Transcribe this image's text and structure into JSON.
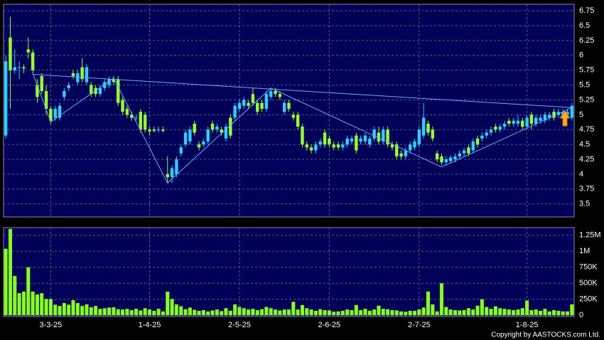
{
  "chart_data": [
    {
      "type": "candlestick",
      "open": [
        4.65,
        6.3,
        5.75,
        5.8,
        5.8,
        6.1,
        6.05,
        5.5,
        5.65,
        5.4,
        5.1,
        4.95,
        4.95,
        5.3,
        5.45,
        5.7,
        5.55,
        5.8,
        5.55,
        5.5,
        5.45,
        5.35,
        5.45,
        5.5,
        5.6,
        5.6,
        5.25,
        5.1,
        5.0,
        4.95,
        5.05,
        5.0,
        4.75,
        4.75,
        4.75,
        4.75,
        4.0,
        3.95,
        4.0,
        4.35,
        4.5,
        4.55,
        4.85,
        4.5,
        4.5,
        4.55,
        4.85,
        4.75,
        4.75,
        4.6,
        4.95,
        4.95,
        5.1,
        5.15,
        5.2,
        5.35,
        5.2,
        5.2,
        5.1,
        5.3,
        5.4,
        5.35,
        5.05,
        5.2,
        5.0,
        5.0,
        4.8,
        4.5,
        4.45,
        4.4,
        4.5,
        4.7,
        4.6,
        4.5,
        4.5,
        4.45,
        4.5,
        4.55,
        4.65,
        4.55,
        4.55,
        4.5,
        4.6,
        4.7,
        4.55,
        4.75,
        4.5,
        4.5,
        4.35,
        4.3,
        4.4,
        4.45,
        4.5,
        4.65,
        4.85,
        4.75,
        4.35,
        4.3,
        4.2,
        4.22,
        4.25,
        4.3,
        4.35,
        4.45,
        4.4,
        4.6,
        4.6,
        4.65,
        4.7,
        4.8,
        4.75,
        4.8,
        4.9,
        4.85,
        4.85,
        4.9,
        4.8,
        5.0,
        4.85,
        4.9,
        4.9,
        4.95,
        5.05,
        5.0,
        5.0,
        5.0,
        4.95
      ],
      "high": [
        6.0,
        6.65,
        6.1,
        5.9,
        5.85,
        6.3,
        6.1,
        5.6,
        5.7,
        5.5,
        5.15,
        5.15,
        5.2,
        5.45,
        5.55,
        5.75,
        5.75,
        5.95,
        5.85,
        5.55,
        5.5,
        5.5,
        5.6,
        5.65,
        5.65,
        5.65,
        5.3,
        5.15,
        5.05,
        5.0,
        5.1,
        5.05,
        4.8,
        4.8,
        4.8,
        4.8,
        4.3,
        4.15,
        4.3,
        4.5,
        4.75,
        4.8,
        4.9,
        4.55,
        4.6,
        4.8,
        4.9,
        4.85,
        4.8,
        4.85,
        5.0,
        5.2,
        5.25,
        5.3,
        5.25,
        5.45,
        5.25,
        5.25,
        5.4,
        5.45,
        5.45,
        5.4,
        5.25,
        5.25,
        5.05,
        5.05,
        4.85,
        4.55,
        4.5,
        4.55,
        4.6,
        4.75,
        4.65,
        4.55,
        4.55,
        4.55,
        4.65,
        4.65,
        4.7,
        4.65,
        4.7,
        4.65,
        4.8,
        4.8,
        4.8,
        4.8,
        4.55,
        4.55,
        4.4,
        4.45,
        4.55,
        4.6,
        4.8,
        5.2,
        4.9,
        4.8,
        4.4,
        4.35,
        4.3,
        4.32,
        4.35,
        4.4,
        4.45,
        4.5,
        4.6,
        4.65,
        4.7,
        4.75,
        4.8,
        4.85,
        4.85,
        4.9,
        4.95,
        4.95,
        5.0,
        4.95,
        5.0,
        5.05,
        5.0,
        5.0,
        5.05,
        5.05,
        5.1,
        5.1,
        5.1,
        5.1,
        5.2
      ],
      "low": [
        4.6,
        5.1,
        5.7,
        5.6,
        5.7,
        5.95,
        5.7,
        5.2,
        5.35,
        5.0,
        4.85,
        4.9,
        4.9,
        5.25,
        5.4,
        5.6,
        5.5,
        5.55,
        5.5,
        5.3,
        5.3,
        5.3,
        5.4,
        5.45,
        5.5,
        5.15,
        5.0,
        4.95,
        4.9,
        4.9,
        4.7,
        4.7,
        4.65,
        4.7,
        4.7,
        4.7,
        3.85,
        3.85,
        3.95,
        4.3,
        4.45,
        4.5,
        4.65,
        4.4,
        4.45,
        4.5,
        4.7,
        4.7,
        4.65,
        4.55,
        4.6,
        4.9,
        5.05,
        5.1,
        5.1,
        5.15,
        5.0,
        5.05,
        5.05,
        5.25,
        5.3,
        5.25,
        5.0,
        5.05,
        4.9,
        4.75,
        4.45,
        4.4,
        4.35,
        4.35,
        4.45,
        4.45,
        4.45,
        4.4,
        4.4,
        4.4,
        4.45,
        4.5,
        4.35,
        4.5,
        4.5,
        4.45,
        4.55,
        4.5,
        4.5,
        4.45,
        4.4,
        4.25,
        4.25,
        4.25,
        4.35,
        4.4,
        4.45,
        4.6,
        4.65,
        4.55,
        4.2,
        4.15,
        4.15,
        4.18,
        4.2,
        4.25,
        4.3,
        4.3,
        4.35,
        4.45,
        4.55,
        4.6,
        4.65,
        4.7,
        4.7,
        4.75,
        4.8,
        4.8,
        4.8,
        4.75,
        4.75,
        4.75,
        4.8,
        4.85,
        4.85,
        4.9,
        4.9,
        4.95,
        4.95,
        4.95,
        4.9
      ],
      "close": [
        5.9,
        5.75,
        5.8,
        5.8,
        5.78,
        6.05,
        5.75,
        5.3,
        5.4,
        5.1,
        4.9,
        5.1,
        5.15,
        5.4,
        5.5,
        5.65,
        5.7,
        5.6,
        5.8,
        5.35,
        5.35,
        5.45,
        5.55,
        5.6,
        5.55,
        5.2,
        5.05,
        5.0,
        4.95,
        4.95,
        4.75,
        4.75,
        4.72,
        4.73,
        4.75,
        4.73,
        3.95,
        4.1,
        4.25,
        4.45,
        4.7,
        4.75,
        4.7,
        4.45,
        4.55,
        4.75,
        4.75,
        4.8,
        4.7,
        4.8,
        4.65,
        5.15,
        5.2,
        5.25,
        5.15,
        5.2,
        5.05,
        5.1,
        5.35,
        5.4,
        5.35,
        5.3,
        5.2,
        5.1,
        4.95,
        4.8,
        4.5,
        4.45,
        4.4,
        4.5,
        4.55,
        4.5,
        4.5,
        4.45,
        4.45,
        4.5,
        4.6,
        4.6,
        4.4,
        4.6,
        4.65,
        4.6,
        4.75,
        4.55,
        4.75,
        4.5,
        4.45,
        4.3,
        4.3,
        4.4,
        4.5,
        4.55,
        4.75,
        4.95,
        4.7,
        4.6,
        4.25,
        4.2,
        4.25,
        4.28,
        4.3,
        4.35,
        4.4,
        4.35,
        4.55,
        4.5,
        4.65,
        4.7,
        4.75,
        4.75,
        4.8,
        4.85,
        4.85,
        4.9,
        4.9,
        4.8,
        4.95,
        4.85,
        4.95,
        4.95,
        5.0,
        5.0,
        4.95,
        5.05,
        5.05,
        5.05,
        5.15
      ],
      "up_color": "#33ccff",
      "down_color": "#99ff33",
      "xlim": [
        -0.5,
        126.5
      ],
      "ylim": [
        3.28,
        6.86
      ],
      "yticks": [
        6.75,
        6.5,
        6.25,
        6,
        5.75,
        5.5,
        5.25,
        5,
        4.75,
        4.5,
        4.25,
        4,
        3.75,
        3.5
      ],
      "grid": true,
      "lines": [
        {
          "x": [
            6,
            126
          ],
          "y": [
            5.68,
            5.12
          ]
        },
        {
          "x": [
            6,
            10,
            24,
            36,
            59,
            97,
            126
          ],
          "y": [
            5.7,
            4.88,
            5.62,
            3.85,
            5.45,
            4.12,
            5.12
          ]
        }
      ],
      "line_color": "#6fa8ff"
    },
    {
      "type": "bar",
      "values": [
        1040000,
        1350000,
        615000,
        345000,
        370000,
        750000,
        370000,
        325000,
        345000,
        255000,
        255000,
        165000,
        145000,
        190000,
        165000,
        235000,
        190000,
        145000,
        170000,
        125000,
        145000,
        100000,
        110000,
        120000,
        125000,
        95000,
        90000,
        100000,
        80000,
        100000,
        75000,
        110000,
        90000,
        70000,
        100000,
        60000,
        370000,
        255000,
        170000,
        140000,
        95000,
        120000,
        85000,
        70000,
        80000,
        60000,
        75000,
        90000,
        65000,
        110000,
        70000,
        170000,
        130000,
        110000,
        90000,
        100000,
        80000,
        95000,
        130000,
        110000,
        90000,
        75000,
        90000,
        90000,
        210000,
        90000,
        160000,
        110000,
        90000,
        70000,
        95000,
        80000,
        75000,
        55000,
        60000,
        70000,
        90000,
        80000,
        160000,
        80000,
        100000,
        70000,
        90000,
        150000,
        100000,
        95000,
        80000,
        75000,
        60000,
        55000,
        70000,
        70000,
        90000,
        120000,
        370000,
        170000,
        60000,
        500000,
        130000,
        90000,
        80000,
        75000,
        80000,
        110000,
        90000,
        150000,
        250000,
        130000,
        100000,
        140000,
        110000,
        100000,
        90000,
        80000,
        90000,
        110000,
        230000,
        80000,
        90000,
        70000,
        100000,
        60000,
        80000,
        70000,
        60000,
        60000,
        170000
      ],
      "color": "#88ff22",
      "xlim": [
        -0.5,
        126.5
      ],
      "ylim": [
        -20000,
        1370000
      ],
      "yticks": [
        {
          "value": 1250000,
          "label": "1.25M"
        },
        {
          "value": 1000000,
          "label": "1M"
        },
        {
          "value": 750000,
          "label": "750K"
        },
        {
          "value": 500000,
          "label": "500K"
        },
        {
          "value": 250000,
          "label": "250K"
        },
        0
      ],
      "xticks": [
        {
          "value": 10,
          "label": "3-3-25"
        },
        {
          "value": 32,
          "label": "1-4-25"
        },
        {
          "value": 52,
          "label": "2-5-25"
        },
        {
          "value": 72,
          "label": "2-6-25"
        },
        {
          "value": 92,
          "label": "2-7-25"
        },
        {
          "value": 116,
          "label": "1-8-25"
        }
      ],
      "grid": true
    }
  ],
  "copyright": "Copyright by AASTOCKS.com Ltd."
}
